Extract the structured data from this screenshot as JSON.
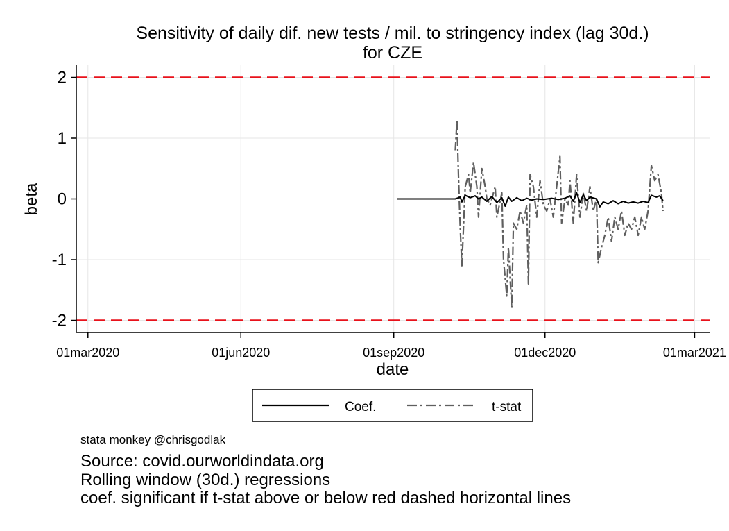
{
  "chart_data": {
    "type": "line",
    "title": [
      "Sensitivity of daily dif. new tests / mil. to stringency index (lag 30d.)",
      "for CZE"
    ],
    "xlabel": "date",
    "ylabel": "beta",
    "x_ticks": [
      "01mar2020",
      "01jun2020",
      "01sep2020",
      "01dec2020",
      "01mar2021"
    ],
    "y_ticks": [
      "2",
      "1",
      "0",
      "-1",
      "-2"
    ],
    "xlim": [
      "2020-02-23",
      "2021-03-10"
    ],
    "ylim": [
      -2.2,
      2.2
    ],
    "grid": true,
    "reference_lines": [
      {
        "y": 2,
        "color": "#e8121b",
        "style": "dashed"
      },
      {
        "y": -2,
        "color": "#e8121b",
        "style": "dashed"
      }
    ],
    "legend": {
      "position": "bottom",
      "entries": [
        "Coef.",
        "t-stat"
      ]
    },
    "series": [
      {
        "name": "Coef.",
        "color": "#000000",
        "style": "solid",
        "points": [
          [
            "2020-09-03",
            0.0
          ],
          [
            "2020-10-08",
            0.0
          ],
          [
            "2020-10-11",
            0.03
          ],
          [
            "2020-10-12",
            -0.05
          ],
          [
            "2020-10-14",
            0.06
          ],
          [
            "2020-10-17",
            0.02
          ],
          [
            "2020-10-20",
            0.05
          ],
          [
            "2020-10-22",
            0.0
          ],
          [
            "2020-10-24",
            0.03
          ],
          [
            "2020-10-27",
            -0.04
          ],
          [
            "2020-10-30",
            0.04
          ],
          [
            "2020-11-02",
            -0.06
          ],
          [
            "2020-11-05",
            0.02
          ],
          [
            "2020-11-07",
            -0.12
          ],
          [
            "2020-11-09",
            0.03
          ],
          [
            "2020-11-11",
            -0.04
          ],
          [
            "2020-11-14",
            0.02
          ],
          [
            "2020-11-17",
            -0.03
          ],
          [
            "2020-11-20",
            0.01
          ],
          [
            "2020-11-23",
            -0.02
          ],
          [
            "2020-11-26",
            0.0
          ],
          [
            "2020-11-30",
            -0.01
          ],
          [
            "2020-12-05",
            0.01
          ],
          [
            "2020-12-09",
            -0.01
          ],
          [
            "2020-12-13",
            0.01
          ],
          [
            "2020-12-16",
            0.05
          ],
          [
            "2020-12-18",
            -0.04
          ],
          [
            "2020-12-20",
            0.1
          ],
          [
            "2020-12-22",
            -0.06
          ],
          [
            "2020-12-24",
            0.07
          ],
          [
            "2020-12-26",
            -0.03
          ],
          [
            "2020-12-28",
            0.03
          ],
          [
            "2021-01-01",
            0.0
          ],
          [
            "2021-01-03",
            -0.13
          ],
          [
            "2021-01-05",
            -0.05
          ],
          [
            "2021-01-08",
            -0.08
          ],
          [
            "2021-01-11",
            -0.03
          ],
          [
            "2021-01-14",
            -0.08
          ],
          [
            "2021-01-17",
            -0.04
          ],
          [
            "2021-01-20",
            -0.07
          ],
          [
            "2021-01-23",
            -0.05
          ],
          [
            "2021-01-26",
            -0.07
          ],
          [
            "2021-01-29",
            -0.04
          ],
          [
            "2021-02-01",
            -0.06
          ],
          [
            "2021-02-03",
            0.06
          ],
          [
            "2021-02-06",
            0.03
          ],
          [
            "2021-02-08",
            0.05
          ],
          [
            "2021-02-10",
            -0.03
          ]
        ]
      },
      {
        "name": "t-stat",
        "color": "#5f5f5f",
        "style": "dash-dot",
        "points": [
          [
            "2020-10-08",
            0.8
          ],
          [
            "2020-10-09",
            1.3
          ],
          [
            "2020-10-10",
            0.3
          ],
          [
            "2020-10-11",
            -0.5
          ],
          [
            "2020-10-12",
            -1.1
          ],
          [
            "2020-10-14",
            0.2
          ],
          [
            "2020-10-16",
            0.4
          ],
          [
            "2020-10-17",
            0.1
          ],
          [
            "2020-10-19",
            0.6
          ],
          [
            "2020-10-21",
            0.2
          ],
          [
            "2020-10-22",
            -0.3
          ],
          [
            "2020-10-24",
            0.5
          ],
          [
            "2020-10-26",
            0.2
          ],
          [
            "2020-10-27",
            0.0
          ],
          [
            "2020-10-29",
            -0.1
          ],
          [
            "2020-11-01",
            0.2
          ],
          [
            "2020-11-02",
            -0.3
          ],
          [
            "2020-11-05",
            0.1
          ],
          [
            "2020-11-06",
            -1.0
          ],
          [
            "2020-11-08",
            -1.6
          ],
          [
            "2020-11-09",
            -0.8
          ],
          [
            "2020-11-10",
            -1.3
          ],
          [
            "2020-11-11",
            -1.8
          ],
          [
            "2020-11-12",
            -0.4
          ],
          [
            "2020-11-14",
            -0.5
          ],
          [
            "2020-11-16",
            -0.2
          ],
          [
            "2020-11-18",
            -0.4
          ],
          [
            "2020-11-20",
            -0.1
          ],
          [
            "2020-11-21",
            -1.4
          ],
          [
            "2020-11-22",
            0.4
          ],
          [
            "2020-11-24",
            0.2
          ],
          [
            "2020-11-26",
            -0.3
          ],
          [
            "2020-11-28",
            0.3
          ],
          [
            "2020-11-30",
            -0.1
          ],
          [
            "2020-12-02",
            -0.2
          ],
          [
            "2020-12-04",
            0.0
          ],
          [
            "2020-12-06",
            -0.3
          ],
          [
            "2020-12-08",
            0.2
          ],
          [
            "2020-12-10",
            0.7
          ],
          [
            "2020-12-11",
            -0.4
          ],
          [
            "2020-12-13",
            0.0
          ],
          [
            "2020-12-15",
            -0.1
          ],
          [
            "2020-12-16",
            0.3
          ],
          [
            "2020-12-18",
            -0.4
          ],
          [
            "2020-12-20",
            0.4
          ],
          [
            "2020-12-22",
            -0.3
          ],
          [
            "2020-12-24",
            0.1
          ],
          [
            "2020-12-26",
            -0.2
          ],
          [
            "2020-12-28",
            0.2
          ],
          [
            "2020-12-30",
            -0.2
          ],
          [
            "2021-01-01",
            0.0
          ],
          [
            "2021-01-02",
            -1.05
          ],
          [
            "2021-01-04",
            -0.8
          ],
          [
            "2021-01-06",
            -0.6
          ],
          [
            "2021-01-08",
            -0.3
          ],
          [
            "2021-01-10",
            -0.7
          ],
          [
            "2021-01-12",
            -0.3
          ],
          [
            "2021-01-14",
            -0.5
          ],
          [
            "2021-01-16",
            -0.2
          ],
          [
            "2021-01-18",
            -0.6
          ],
          [
            "2021-01-20",
            -0.4
          ],
          [
            "2021-01-22",
            -0.5
          ],
          [
            "2021-01-24",
            -0.3
          ],
          [
            "2021-01-26",
            -0.6
          ],
          [
            "2021-01-28",
            -0.3
          ],
          [
            "2021-01-30",
            -0.5
          ],
          [
            "2021-02-01",
            -0.2
          ],
          [
            "2021-02-03",
            0.55
          ],
          [
            "2021-02-05",
            0.3
          ],
          [
            "2021-02-07",
            0.4
          ],
          [
            "2021-02-09",
            0.1
          ],
          [
            "2021-02-10",
            -0.2
          ]
        ]
      }
    ]
  },
  "notes": {
    "credit": "stata monkey @chrisgodlak",
    "source": "Source: covid.ourworldindata.org",
    "method": "Rolling window (30d.) regressions",
    "significance": "coef. significant if t-stat above or below red dashed horizontal lines"
  }
}
